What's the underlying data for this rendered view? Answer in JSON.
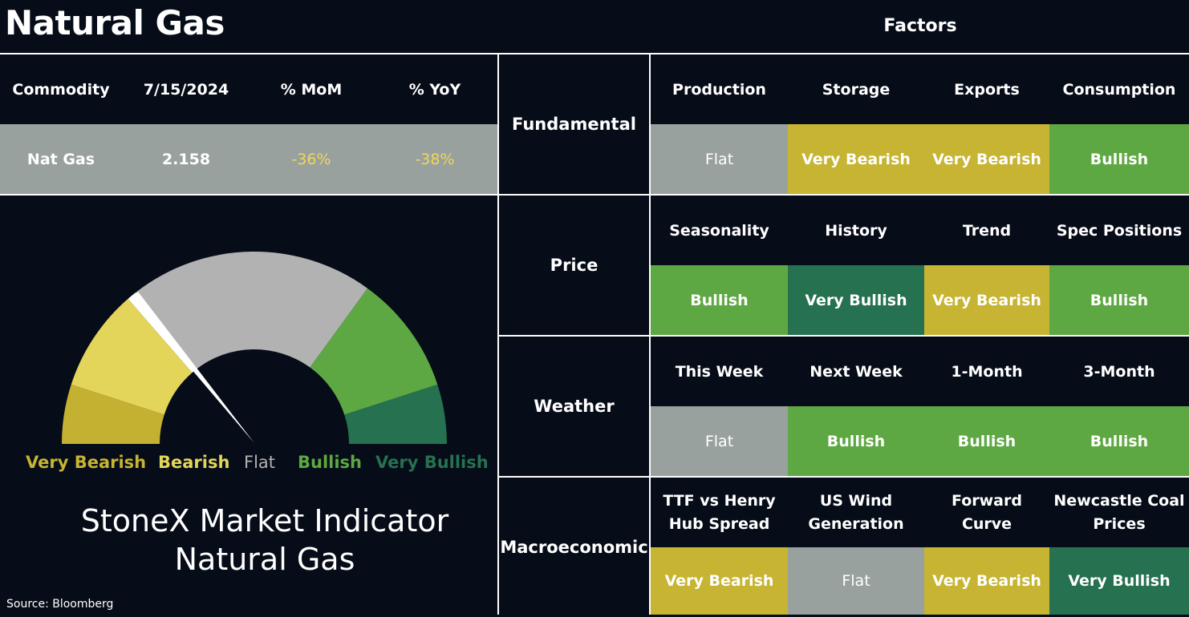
{
  "title": "Natural Gas",
  "factors_title": "Factors",
  "commodity_table": {
    "headers": [
      "Commodity",
      "7/15/2024",
      "% MoM",
      "% YoY"
    ],
    "row": [
      "Nat Gas",
      "2.158",
      "-36%",
      "-38%"
    ]
  },
  "gauge": {
    "labels": [
      "Very Bearish",
      "Bearish",
      "Flat",
      "Bullish",
      "Very Bullish"
    ],
    "colors": {
      "very_bearish": "#c4b132",
      "bearish": "#e3d45a",
      "flat": "#b2b2b2",
      "bullish": "#5ea843",
      "very_bullish": "#267150"
    },
    "needle_reading": "Bearish"
  },
  "indicator": {
    "line1": "StoneX Market Indicator",
    "line2": "Natural Gas"
  },
  "source": "Source: Bloomberg",
  "status_colors": {
    "Flat": "#99a19f",
    "Very Bearish": "#c6b432",
    "Bearish": "#e3d45a",
    "Bullish": "#5ea843",
    "Very Bullish": "#267150"
  },
  "sections": [
    {
      "name": "Fundamental",
      "headers": [
        "Production",
        "Storage",
        "Exports",
        "Consumption"
      ],
      "values": [
        "Flat",
        "Very Bearish",
        "Very Bearish",
        "Bullish"
      ]
    },
    {
      "name": "Price",
      "headers": [
        "Seasonality",
        "History",
        "Trend",
        "Spec Positions"
      ],
      "values": [
        "Bullish",
        "Very Bullish",
        "Very Bearish",
        "Bullish"
      ]
    },
    {
      "name": "Weather",
      "headers": [
        "This Week",
        "Next Week",
        "1-Month",
        "3-Month"
      ],
      "values": [
        "Flat",
        "Bullish",
        "Bullish",
        "Bullish"
      ]
    },
    {
      "name": "Macroeconomic",
      "headers": [
        [
          "TTF vs Henry",
          "Hub Spread"
        ],
        [
          "US Wind",
          "Generation"
        ],
        [
          "Forward",
          "Curve"
        ],
        [
          "Newcastle Coal",
          "Prices"
        ]
      ],
      "values": [
        "Very Bearish",
        "Flat",
        "Very Bearish",
        "Very Bullish"
      ]
    }
  ]
}
